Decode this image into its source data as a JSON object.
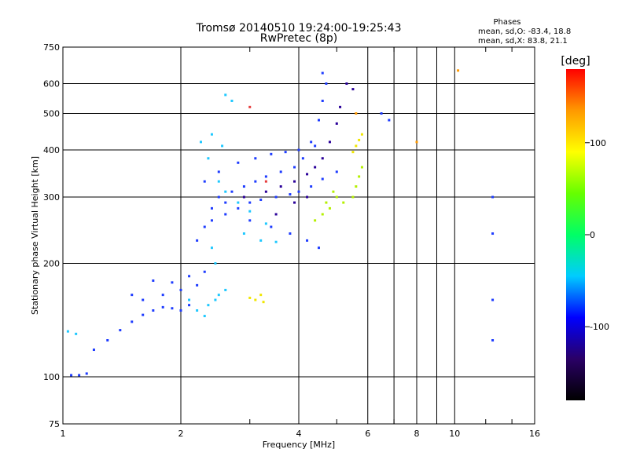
{
  "chart_data": {
    "type": "scatter",
    "title": "Tromsø 20140510 19:24:00-19:25:43",
    "subtitle": "RwPretec (8p)",
    "xlabel": "Frequency [MHz]",
    "ylabel": "Stationary phase Virtual Height [km]",
    "x_scale": "log",
    "y_scale": "log",
    "xlim": [
      1,
      16
    ],
    "ylim": [
      75,
      750
    ],
    "x_ticks": [
      1,
      2,
      4,
      6,
      8,
      10,
      16
    ],
    "y_ticks": [
      75,
      100,
      200,
      300,
      400,
      500,
      600,
      750
    ],
    "x_gridlines": [
      2,
      4,
      6,
      8,
      10
    ],
    "y_gridlines": [
      100,
      200,
      300,
      400,
      500,
      600
    ],
    "grid": true,
    "stats": {
      "heading": "Phases",
      "line_o": "mean, sd,O: -83.4, 18.8",
      "line_x": "mean, sd,X:  83.8, 21.1"
    },
    "colorbar": {
      "label": "[deg]",
      "range": [
        -180,
        180
      ],
      "ticks": [
        100,
        0,
        -100
      ],
      "colormap": [
        "#000000",
        "#2a0066",
        "#0000ff",
        "#00ccff",
        "#00ff66",
        "#66ff00",
        "#ffff00",
        "#ff9900",
        "#ff0000"
      ]
    },
    "series": [
      {
        "color": "#1e3cff",
        "points": [
          [
            1.05,
            101
          ],
          [
            1.1,
            101
          ],
          [
            1.15,
            102
          ],
          [
            1.2,
            118
          ],
          [
            1.3,
            125
          ],
          [
            1.4,
            133
          ],
          [
            1.5,
            140
          ],
          [
            1.6,
            146
          ],
          [
            1.7,
            150
          ],
          [
            1.8,
            153
          ],
          [
            1.9,
            152
          ],
          [
            2.0,
            150
          ],
          [
            2.1,
            155
          ],
          [
            1.6,
            160
          ],
          [
            1.8,
            165
          ],
          [
            2.0,
            170
          ],
          [
            2.2,
            175
          ],
          [
            1.7,
            180
          ],
          [
            1.9,
            178
          ],
          [
            2.1,
            185
          ],
          [
            2.3,
            190
          ],
          [
            1.5,
            165
          ],
          [
            2.2,
            230
          ],
          [
            2.3,
            250
          ],
          [
            2.4,
            260
          ],
          [
            2.6,
            270
          ],
          [
            2.8,
            280
          ],
          [
            3.0,
            290
          ],
          [
            3.2,
            295
          ],
          [
            3.5,
            300
          ],
          [
            3.8,
            305
          ],
          [
            4.0,
            310
          ],
          [
            4.3,
            320
          ],
          [
            4.6,
            335
          ],
          [
            5.0,
            350
          ],
          [
            2.5,
            300
          ],
          [
            2.7,
            310
          ],
          [
            2.9,
            320
          ],
          [
            3.1,
            330
          ],
          [
            3.3,
            340
          ],
          [
            3.6,
            350
          ],
          [
            3.9,
            360
          ],
          [
            4.1,
            380
          ],
          [
            4.3,
            420
          ],
          [
            4.5,
            480
          ],
          [
            4.6,
            540
          ],
          [
            4.7,
            600
          ],
          [
            4.6,
            640
          ],
          [
            2.3,
            330
          ],
          [
            2.5,
            350
          ],
          [
            2.8,
            370
          ],
          [
            3.1,
            380
          ],
          [
            3.4,
            390
          ],
          [
            3.7,
            395
          ],
          [
            4.0,
            400
          ],
          [
            4.4,
            410
          ],
          [
            2.4,
            280
          ],
          [
            2.6,
            290
          ],
          [
            3.0,
            260
          ],
          [
            3.4,
            250
          ],
          [
            3.8,
            240
          ],
          [
            4.2,
            230
          ],
          [
            4.5,
            220
          ],
          [
            6.5,
            500
          ],
          [
            6.8,
            480
          ],
          [
            12.5,
            300
          ],
          [
            12.5,
            240
          ],
          [
            12.5,
            160
          ],
          [
            12.5,
            125
          ]
        ]
      },
      {
        "color": "#2a0099",
        "points": [
          [
            3.3,
            310
          ],
          [
            3.6,
            320
          ],
          [
            3.9,
            330
          ],
          [
            4.2,
            345
          ],
          [
            4.4,
            360
          ],
          [
            4.6,
            380
          ],
          [
            4.8,
            420
          ],
          [
            5.0,
            470
          ],
          [
            5.1,
            520
          ],
          [
            3.5,
            270
          ],
          [
            3.9,
            290
          ],
          [
            4.2,
            300
          ],
          [
            2.9,
            300
          ],
          [
            5.3,
            600
          ],
          [
            5.5,
            580
          ]
        ]
      },
      {
        "color": "#1ec8ff",
        "points": [
          [
            1.03,
            132
          ],
          [
            1.08,
            130
          ],
          [
            2.2,
            150
          ],
          [
            2.35,
            155
          ],
          [
            2.5,
            165
          ],
          [
            2.6,
            170
          ],
          [
            2.45,
            160
          ],
          [
            2.3,
            145
          ],
          [
            2.1,
            160
          ],
          [
            2.25,
            420
          ],
          [
            2.4,
            440
          ],
          [
            2.55,
            410
          ],
          [
            2.35,
            380
          ],
          [
            2.6,
            560
          ],
          [
            2.7,
            540
          ],
          [
            2.5,
            330
          ],
          [
            2.8,
            290
          ],
          [
            3.0,
            275
          ],
          [
            3.3,
            255
          ],
          [
            2.6,
            310
          ],
          [
            2.9,
            240
          ],
          [
            3.2,
            230
          ],
          [
            3.5,
            228
          ],
          [
            2.4,
            220
          ],
          [
            2.45,
            200
          ]
        ]
      },
      {
        "color": "#b4f000",
        "points": [
          [
            4.6,
            270
          ],
          [
            4.8,
            280
          ],
          [
            5.0,
            300
          ],
          [
            4.4,
            260
          ],
          [
            5.2,
            290
          ],
          [
            4.9,
            310
          ],
          [
            5.6,
            320
          ],
          [
            5.7,
            340
          ],
          [
            5.8,
            360
          ],
          [
            5.5,
            300
          ],
          [
            4.7,
            290
          ]
        ]
      },
      {
        "color": "#f0e600",
        "points": [
          [
            3.1,
            160
          ],
          [
            3.2,
            165
          ],
          [
            3.25,
            158
          ],
          [
            3.0,
            162
          ],
          [
            5.6,
            410
          ],
          [
            5.7,
            425
          ],
          [
            5.8,
            440
          ],
          [
            5.5,
            395
          ]
        ]
      },
      {
        "color": "#ff9900",
        "points": [
          [
            10.2,
            650
          ],
          [
            5.6,
            500
          ],
          [
            8.0,
            420
          ]
        ]
      },
      {
        "color": "#e63c3c",
        "points": [
          [
            3.3,
            330
          ],
          [
            3.0,
            520
          ]
        ]
      }
    ]
  }
}
